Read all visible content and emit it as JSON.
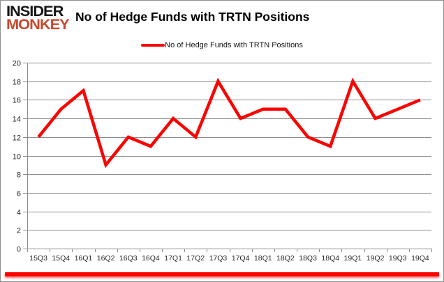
{
  "header": {
    "logo_line1": "INSIDER",
    "logo_line2": "MONKEY",
    "title": "No of Hedge Funds with TRTN Positions"
  },
  "legend": {
    "label": "No of Hedge Funds with TRTN Positions"
  },
  "chart_data": {
    "type": "line",
    "title": "No of Hedge Funds with TRTN Positions",
    "categories": [
      "15Q3",
      "15Q4",
      "16Q1",
      "16Q2",
      "16Q3",
      "16Q4",
      "17Q1",
      "17Q2",
      "17Q3",
      "17Q4",
      "18Q1",
      "18Q2",
      "18Q3",
      "18Q4",
      "19Q1",
      "19Q2",
      "19Q3",
      "19Q4"
    ],
    "values": [
      12,
      15,
      17,
      9,
      12,
      11,
      14,
      12,
      18,
      14,
      15,
      15,
      12,
      11,
      18,
      14,
      15,
      16
    ],
    "xlabel": "",
    "ylabel": "",
    "ylim": [
      0,
      20
    ],
    "ytick_step": 2,
    "grid": true,
    "legend_position": "top-center",
    "line_color": "#fb0300",
    "grid_color": "#8c8c8c",
    "axis_text_color": "#262626"
  },
  "colors": {
    "logo_black": "#161616",
    "logo_red": "#c7492f",
    "accent_bar": "#fa0500"
  }
}
